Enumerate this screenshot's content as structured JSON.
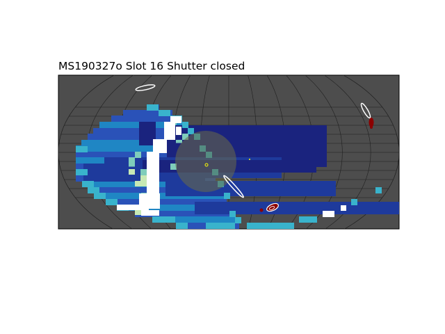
{
  "chart_data": {
    "type": "heatmap",
    "title": "MS190327o Slot 16 Shutter closed",
    "projection": "mollweide",
    "grid": true,
    "colors": {
      "background": "#4d4d4d",
      "grid": "#1f1f1f",
      "contour": "#ffffff",
      "skymap_blob": "#8b0000",
      "sun": "#6b6b45",
      "marker": "#ffff00"
    },
    "colormap": [
      "#1a237e",
      "#1e3a9c",
      "#2a52b8",
      "#1f86c4",
      "#39b3cc",
      "#7fcdbb",
      "#c7e9b4",
      "#ffffff"
    ]
  }
}
